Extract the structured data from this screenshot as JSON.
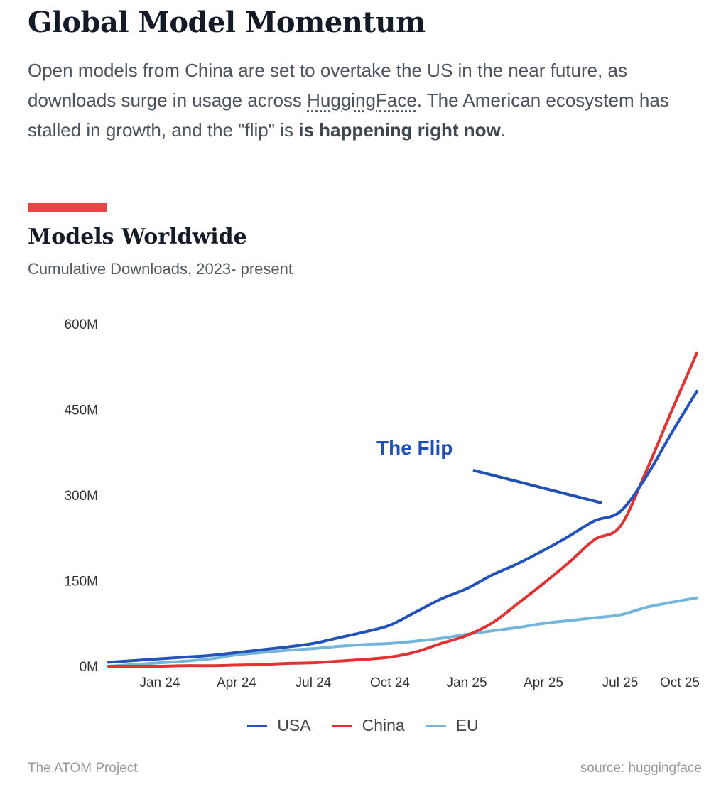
{
  "header": {
    "title": "Global Model Momentum",
    "intro_part1": "Open models from China are set to overtake the US in the near future, as downloads surge in usage across ",
    "intro_link": "HuggingFace",
    "intro_part2": ". The American ecosystem has stalled in growth, and the \"flip\" is ",
    "intro_bold": "is happening right now",
    "intro_end": "."
  },
  "colors": {
    "accent": "#e64545",
    "usa": "#2352b8",
    "china": "#e03434",
    "eu": "#74b6db",
    "annotation": "#2150b0"
  },
  "chart_data": {
    "type": "line",
    "title": "Models Worldwide",
    "subtitle": "Cumulative Downloads, 2023- present",
    "x": [
      "Nov 23",
      "Dec 23",
      "Jan 24",
      "Feb 24",
      "Mar 24",
      "Apr 24",
      "May 24",
      "Jun 24",
      "Jul 24",
      "Aug 24",
      "Sep 24",
      "Oct 24",
      "Nov 24",
      "Dec 24",
      "Jan 25",
      "Feb 25",
      "Mar 25",
      "Apr 25",
      "May 25",
      "Jun 25",
      "Jul 25",
      "Aug 25",
      "Sep 25",
      "Oct 25"
    ],
    "x_ticks": [
      "Jan 24",
      "Apr 24",
      "Jul 24",
      "Oct 24",
      "Jan 25",
      "Apr 25",
      "Jul 25",
      "Oct 25"
    ],
    "y_ticks": [
      "0M",
      "150M",
      "300M",
      "450M",
      "600M"
    ],
    "y_tick_values": [
      0,
      150,
      300,
      450,
      600
    ],
    "ylim": [
      0,
      600
    ],
    "y_unit": "M",
    "grid": false,
    "legend_placement": "bottom",
    "series": [
      {
        "name": "USA",
        "color": "#2352b8",
        "values": [
          7,
          10,
          13,
          16,
          19,
          24,
          29,
          34,
          40,
          50,
          60,
          72,
          95,
          118,
          136,
          160,
          180,
          203,
          228,
          255,
          271,
          331,
          408,
          482
        ]
      },
      {
        "name": "China",
        "color": "#e03434",
        "values": [
          0,
          0,
          0,
          1,
          1,
          2,
          3,
          5,
          6,
          9,
          12,
          16,
          25,
          40,
          54,
          76,
          110,
          145,
          182,
          222,
          245,
          340,
          446,
          549
        ]
      },
      {
        "name": "EU",
        "color": "#74b6db",
        "values": [
          0,
          3,
          6,
          9,
          13,
          20,
          24,
          28,
          31,
          35,
          38,
          40,
          44,
          49,
          56,
          62,
          68,
          75,
          80,
          85,
          90,
          103,
          112,
          120
        ]
      }
    ],
    "annotation": {
      "text": "The Flip",
      "points_to": "Jun 25"
    }
  },
  "footer": {
    "left": "The ATOM Project",
    "right": "source: huggingface"
  }
}
